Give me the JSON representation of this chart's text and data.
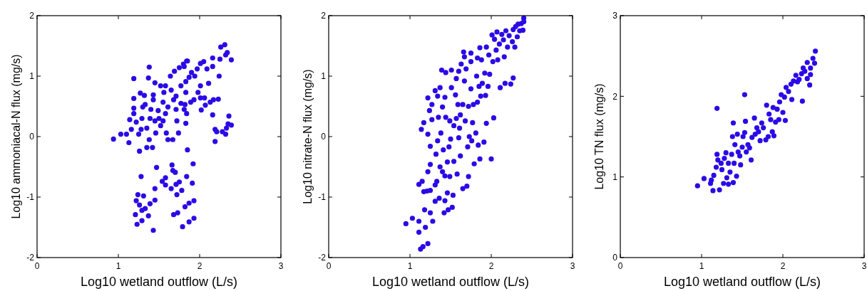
{
  "chart_data": [
    {
      "type": "scatter",
      "xlabel": "Log10 wetland outflow (L/s)",
      "ylabel": "Log10 ammoniacal-N flux (mg/s)",
      "color": "#2a0ae6",
      "marker": "circle",
      "grid": false,
      "xlim": [
        0,
        3
      ],
      "ylim": [
        -2,
        2
      ],
      "xticks": [
        0,
        1,
        2,
        3
      ],
      "yticks": [
        -2,
        -1,
        0,
        1,
        2
      ],
      "x": [
        0.94,
        1.03,
        1.1,
        1.13,
        1.19,
        1.19,
        1.19,
        1.19,
        1.14,
        1.16,
        1.22,
        1.25,
        1.26,
        1.27,
        1.32,
        1.3,
        1.29,
        1.28,
        1.33,
        1.35,
        1.35,
        1.37,
        1.38,
        1.38,
        1.42,
        1.43,
        1.43,
        1.4,
        1.39,
        1.45,
        1.45,
        1.46,
        1.49,
        1.52,
        1.5,
        1.52,
        1.55,
        1.56,
        1.55,
        1.58,
        1.58,
        1.59,
        1.61,
        1.61,
        1.65,
        1.64,
        1.67,
        1.68,
        1.69,
        1.71,
        1.71,
        1.72,
        1.74,
        1.75,
        1.77,
        1.77,
        1.8,
        1.81,
        1.81,
        1.84,
        1.83,
        1.83,
        1.82,
        1.84,
        1.85,
        1.85,
        1.83,
        1.87,
        1.89,
        1.9,
        1.93,
        1.94,
        1.98,
        1.97,
        2.01,
        2.01,
        2.01,
        2.02,
        2.05,
        2.06,
        2.07,
        2.09,
        2.11,
        2.13,
        2.16,
        2.16,
        2.16,
        2.17,
        2.19,
        2.19,
        2.21,
        2.23,
        2.24,
        2.25,
        2.26,
        2.28,
        2.31,
        2.32,
        2.32,
        2.33,
        2.34,
        2.35,
        2.36,
        2.39,
        2.39,
        1.22,
        1.24,
        1.21,
        1.23,
        1.26,
        1.28,
        1.29,
        1.29,
        1.31,
        1.33,
        1.37,
        1.39,
        1.43,
        1.45,
        1.47,
        1.45,
        1.54,
        1.58,
        1.58,
        1.65,
        1.66,
        1.67,
        1.68,
        1.7,
        1.71,
        1.72,
        1.73,
        1.75,
        1.78,
        1.79,
        1.82,
        1.84,
        1.87,
        1.87,
        1.91,
        1.92,
        1.93,
        1.93
      ],
      "values": [
        -0.04,
        0.04,
        0.04,
        -0.1,
        0.96,
        0.63,
        0.47,
        0.38,
        0.28,
        0.12,
        0.24,
        0.04,
        -0.24,
        0.72,
        0.68,
        0.49,
        0.3,
        0.12,
        0.53,
        0.14,
        -0.18,
        0.97,
        1.15,
        -0.05,
        -0.18,
        0.69,
        0.61,
        0.45,
        0.3,
        0.89,
        0.26,
        0.06,
        0.43,
        0.84,
        0.3,
        0.18,
        0.26,
        0.73,
        0.57,
        0.84,
        0.38,
        0.06,
        0.49,
        -0.05,
        0.77,
        1.0,
        -0.05,
        0.61,
        1.08,
        0.67,
        0.45,
        0.26,
        0.06,
        1.14,
        0.84,
        0.55,
        1.2,
        0.45,
        1.16,
        1.25,
        0.91,
        0.73,
        0.53,
        0.38,
        -0.22,
        1.25,
        0.22,
        0.98,
        0.57,
        1.06,
        0.61,
        1.0,
        0.73,
        1.12,
        0.84,
        1.21,
        0.64,
        0.44,
        1.24,
        0.64,
        0.52,
        1.12,
        0.88,
        0.57,
        1.3,
        1.16,
        0.36,
        0.61,
        0.12,
        -0.08,
        0.08,
        0.62,
        1.0,
        1.28,
        1.48,
        0.08,
        1.52,
        1.35,
        0.04,
        0.14,
        1.39,
        0.21,
        0.34,
        0.19,
        1.27,
        -1.06,
        -0.96,
        -1.29,
        -1.45,
        -1.13,
        -0.66,
        -1.22,
        -1.39,
        -0.98,
        -1.19,
        -1.31,
        -1.11,
        -1.55,
        -1.05,
        -0.51,
        -0.86,
        -0.74,
        -0.68,
        -0.8,
        -0.86,
        -0.47,
        -0.56,
        -1.29,
        -0.59,
        -0.79,
        -0.96,
        -1.26,
        -0.75,
        -0.89,
        -1.49,
        -1.16,
        -0.66,
        -1.41,
        -1.1,
        -0.77,
        -0.45,
        -1.06,
        -1.35
      ]
    },
    {
      "type": "scatter",
      "xlabel": "Log10 wetland outflow (L/s)",
      "ylabel": "Log10 nitrate-N flux (mg/s)",
      "color": "#2a0ae6",
      "marker": "circle",
      "grid": false,
      "xlim": [
        0,
        3
      ],
      "ylim": [
        -2,
        2
      ],
      "xticks": [
        0,
        1,
        2,
        3
      ],
      "yticks": [
        -2,
        -1,
        0,
        1,
        2
      ],
      "x": [
        0.95,
        1.03,
        1.11,
        1.11,
        1.11,
        1.13,
        1.16,
        1.22,
        1.14,
        1.17,
        1.15,
        1.17,
        1.18,
        1.19,
        1.21,
        1.22,
        1.22,
        1.22,
        1.24,
        1.25,
        1.25,
        1.25,
        1.25,
        1.27,
        1.27,
        1.28,
        1.31,
        1.31,
        1.31,
        1.32,
        1.33,
        1.34,
        1.34,
        1.35,
        1.36,
        1.37,
        1.37,
        1.38,
        1.39,
        1.4,
        1.4,
        1.41,
        1.42,
        1.43,
        1.43,
        1.43,
        1.44,
        1.44,
        1.46,
        1.46,
        1.47,
        1.48,
        1.49,
        1.49,
        1.5,
        1.51,
        1.51,
        1.52,
        1.53,
        1.54,
        1.54,
        1.56,
        1.57,
        1.57,
        1.58,
        1.59,
        1.6,
        1.6,
        1.61,
        1.62,
        1.62,
        1.63,
        1.65,
        1.65,
        1.66,
        1.67,
        1.67,
        1.68,
        1.69,
        1.7,
        1.71,
        1.72,
        1.72,
        1.73,
        1.75,
        1.75,
        1.75,
        1.76,
        1.77,
        1.78,
        1.79,
        1.81,
        1.82,
        1.83,
        1.83,
        1.84,
        1.85,
        1.86,
        1.86,
        1.87,
        1.88,
        1.89,
        1.91,
        1.92,
        1.93,
        1.94,
        1.94,
        1.96,
        1.97,
        1.98,
        2.0,
        2.01,
        2.02,
        2.03,
        2.04,
        2.06,
        2.07,
        2.08,
        2.1,
        2.11,
        2.13,
        2.15,
        2.16,
        2.17,
        2.18,
        2.2,
        2.22,
        2.24,
        2.26,
        2.27,
        2.27,
        2.29,
        2.3,
        2.32,
        2.33,
        2.35,
        2.37,
        2.39,
        2.4,
        2.4
      ],
      "values": [
        -1.44,
        -1.35,
        -0.79,
        -1.58,
        -1.4,
        -1.86,
        -1.82,
        -1.77,
        0.12,
        0.23,
        -0.74,
        -0.91,
        -1.21,
        -1.5,
        -0.9,
        -0.58,
        0.04,
        0.64,
        0.43,
        -0.46,
        -0.16,
        -0.89,
        -1.26,
        0.53,
        0.28,
        -1.4,
        0.76,
        -0.8,
        -1.07,
        -0.29,
        -0.74,
        0.67,
        -0.07,
        0.32,
        -1.02,
        -0.5,
        0.81,
        0.06,
        1.1,
        -0.58,
        0.49,
        -0.22,
        -1.26,
        0.65,
        -1.06,
        -0.65,
        1.06,
        0.32,
        -0.93,
        -0.42,
        -1.21,
        -0.17,
        -0.66,
        0.26,
        -0.04,
        1.1,
        0.81,
        -1.17,
        -0.97,
        0.18,
        -0.41,
        0.69,
        0.96,
        0.3,
        -0.62,
        0.53,
        -0.02,
        1.08,
        0.14,
        -0.32,
        0.36,
        1.2,
        -0.86,
        0.53,
        1.4,
        0.92,
        1.32,
        0.26,
        1.12,
        -0.82,
        -0.17,
        -0.66,
        0.5,
        0.0,
        1.24,
        1.38,
        0.79,
        -0.07,
        0.23,
        0.53,
        -0.45,
        0.06,
        1.0,
        0.57,
        1.3,
        -0.14,
        0.83,
        -0.37,
        1.47,
        0.67,
        1.27,
        0.88,
        -0.09,
        1.05,
        0.68,
        0.22,
        1.48,
        0.83,
        1.35,
        1.03,
        -0.37,
        1.68,
        1.24,
        0.31,
        1.61,
        1.43,
        1.73,
        1.27,
        1.53,
        0.81,
        1.69,
        1.6,
        1.32,
        0.88,
        1.75,
        1.48,
        1.67,
        0.87,
        1.57,
        0.97,
        1.77,
        1.48,
        1.82,
        1.65,
        1.86,
        1.75,
        1.87,
        1.76,
        1.9,
        1.96
      ]
    },
    {
      "type": "scatter",
      "xlabel": "Log10 wetland outflow (L/s)",
      "ylabel": "Log10 TN flux (mg/s)",
      "color": "#2a0ae6",
      "marker": "circle",
      "grid": false,
      "xlim": [
        0,
        3
      ],
      "ylim": [
        0,
        3
      ],
      "xticks": [
        0,
        1,
        2,
        3
      ],
      "yticks": [
        0,
        1,
        2,
        3
      ],
      "x": [
        0.95,
        1.03,
        1.11,
        1.14,
        1.12,
        1.15,
        1.18,
        1.19,
        1.19,
        1.2,
        1.22,
        1.24,
        1.25,
        1.27,
        1.28,
        1.3,
        1.31,
        1.33,
        1.33,
        1.35,
        1.37,
        1.38,
        1.39,
        1.39,
        1.4,
        1.41,
        1.43,
        1.44,
        1.45,
        1.47,
        1.48,
        1.5,
        1.51,
        1.53,
        1.53,
        1.54,
        1.55,
        1.57,
        1.59,
        1.61,
        1.62,
        1.65,
        1.66,
        1.68,
        1.7,
        1.72,
        1.74,
        1.76,
        1.79,
        1.8,
        1.82,
        1.83,
        1.85,
        1.87,
        1.88,
        1.89,
        1.91,
        1.93,
        1.95,
        1.96,
        1.98,
        2.0,
        2.02,
        2.03,
        2.04,
        2.07,
        2.1,
        2.11,
        2.13,
        2.16,
        2.18,
        2.2,
        2.23,
        2.24,
        2.25,
        2.27,
        2.3,
        2.3,
        2.33,
        2.34,
        2.34,
        2.37,
        2.39,
        2.4
      ],
      "values": [
        0.89,
        0.98,
        0.92,
        0.83,
        0.96,
        1.02,
        1.12,
        1.85,
        1.28,
        1.21,
        0.84,
        1.17,
        1.09,
        0.92,
        1.23,
        1.3,
        0.99,
        1.17,
        0.91,
        1.06,
        1.28,
        1.5,
        1.67,
        0.93,
        1.17,
        1.4,
        1.01,
        1.53,
        1.31,
        1.26,
        1.15,
        1.37,
        1.5,
        2.02,
        1.55,
        1.69,
        1.31,
        1.4,
        1.36,
        1.21,
        1.49,
        1.73,
        1.53,
        1.61,
        1.56,
        1.45,
        1.67,
        1.61,
        1.46,
        1.89,
        1.5,
        1.78,
        1.71,
        1.56,
        1.86,
        1.51,
        1.68,
        1.84,
        1.71,
        1.93,
        2.02,
        1.8,
        1.99,
        1.7,
        2.11,
        2.06,
        2.15,
        1.96,
        2.19,
        2.26,
        2.18,
        2.21,
        2.28,
        1.94,
        2.35,
        2.31,
        2.42,
        2.22,
        2.14,
        2.35,
        2.27,
        2.47,
        2.41,
        2.56
      ]
    }
  ]
}
